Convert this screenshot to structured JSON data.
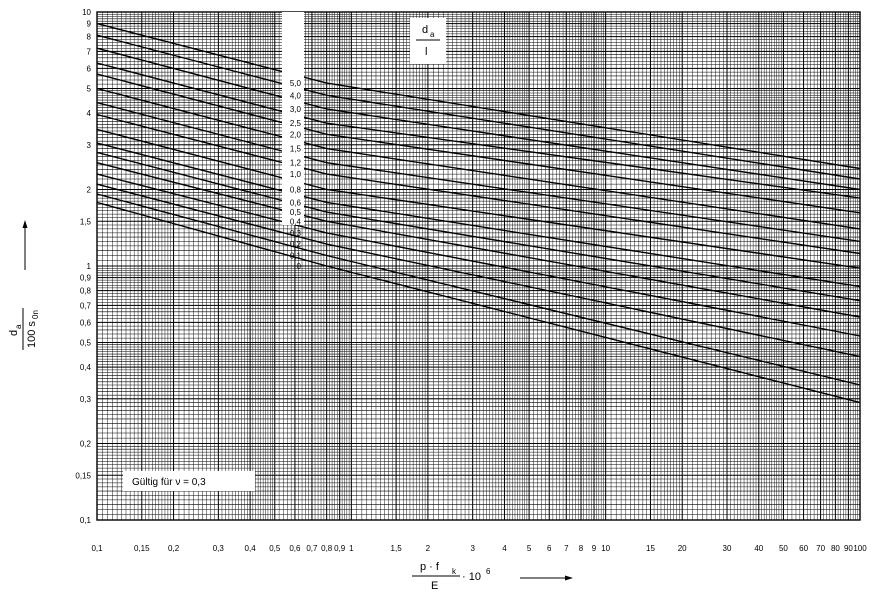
{
  "chart_data": {
    "type": "line",
    "x_scale": "log",
    "y_scale": "log",
    "xlim": [
      0.1,
      100
    ],
    "ylim": [
      0.1,
      10
    ],
    "grid": true,
    "x_ticks": [
      {
        "v": 0.1,
        "t": "0,1"
      },
      {
        "v": 0.15,
        "t": "0,15"
      },
      {
        "v": 0.2,
        "t": "0,2"
      },
      {
        "v": 0.3,
        "t": "0,3"
      },
      {
        "v": 0.4,
        "t": "0,4"
      },
      {
        "v": 0.5,
        "t": "0,5"
      },
      {
        "v": 0.6,
        "t": "0,6"
      },
      {
        "v": 0.7,
        "t": "0,7"
      },
      {
        "v": 0.8,
        "t": "0,8"
      },
      {
        "v": 0.9,
        "t": "0,9"
      },
      {
        "v": 1,
        "t": "1"
      },
      {
        "v": 1.5,
        "t": "1,5"
      },
      {
        "v": 2,
        "t": "2"
      },
      {
        "v": 3,
        "t": "3"
      },
      {
        "v": 4,
        "t": "4"
      },
      {
        "v": 5,
        "t": "5"
      },
      {
        "v": 6,
        "t": "6"
      },
      {
        "v": 7,
        "t": "7"
      },
      {
        "v": 8,
        "t": "8"
      },
      {
        "v": 9,
        "t": "9"
      },
      {
        "v": 10,
        "t": "10"
      },
      {
        "v": 15,
        "t": "15"
      },
      {
        "v": 20,
        "t": "20"
      },
      {
        "v": 30,
        "t": "30"
      },
      {
        "v": 40,
        "t": "40"
      },
      {
        "v": 50,
        "t": "50"
      },
      {
        "v": 60,
        "t": "60"
      },
      {
        "v": 70,
        "t": "70"
      },
      {
        "v": 80,
        "t": "80"
      },
      {
        "v": 90,
        "t": "90"
      },
      {
        "v": 100,
        "t": "100"
      }
    ],
    "y_ticks": [
      {
        "v": 10,
        "t": "10"
      },
      {
        "v": 9,
        "t": "9"
      },
      {
        "v": 8,
        "t": "8"
      },
      {
        "v": 7,
        "t": "7"
      },
      {
        "v": 6,
        "t": "6"
      },
      {
        "v": 5,
        "t": "5"
      },
      {
        "v": 4,
        "t": "4"
      },
      {
        "v": 3,
        "t": "3"
      },
      {
        "v": 2,
        "t": "2"
      },
      {
        "v": 1.5,
        "t": "1,5"
      },
      {
        "v": 1,
        "t": "1"
      },
      {
        "v": 0.9,
        "t": "0,9"
      },
      {
        "v": 0.8,
        "t": "0,8"
      },
      {
        "v": 0.7,
        "t": "0,7"
      },
      {
        "v": 0.6,
        "t": "0,6"
      },
      {
        "v": 0.5,
        "t": "0,5"
      },
      {
        "v": 0.4,
        "t": "0,4"
      },
      {
        "v": 0.3,
        "t": "0,3"
      },
      {
        "v": 0.2,
        "t": "0,2"
      },
      {
        "v": 0.15,
        "t": "0,15"
      },
      {
        "v": 0.1,
        "t": "0,1"
      }
    ],
    "xlabel": {
      "top": "p · f",
      "top_sub": "k",
      "bottom": "E",
      "factor": "· 10",
      "exp": "6"
    },
    "ylabel": {
      "top": "d",
      "top_sub": "a",
      "bottom": "100 s",
      "bottom_sub": "0n"
    },
    "curve_legend": {
      "top": "d",
      "top_sub": "a",
      "bottom": "l"
    },
    "annotation": "Gültig für  ν =  0,3",
    "series": [
      {
        "label": "5,0",
        "x": [
          0.1,
          0.8,
          100
        ],
        "y": [
          9.0,
          5.25,
          2.42
        ]
      },
      {
        "label": "4,0",
        "x": [
          0.1,
          0.8,
          100
        ],
        "y": [
          8.1,
          4.7,
          2.2
        ]
      },
      {
        "label": "3,0",
        "x": [
          0.1,
          0.8,
          100
        ],
        "y": [
          7.2,
          4.15,
          2.0
        ]
      },
      {
        "label": "2,5",
        "x": [
          0.1,
          0.8,
          100
        ],
        "y": [
          6.3,
          3.65,
          1.85
        ]
      },
      {
        "label": "2,0",
        "x": [
          0.1,
          0.8,
          100
        ],
        "y": [
          5.7,
          3.3,
          1.62
        ]
      },
      {
        "label": "1,5",
        "x": [
          0.1,
          0.8,
          100
        ],
        "y": [
          5.0,
          2.9,
          1.4
        ]
      },
      {
        "label": "1,2",
        "x": [
          0.1,
          0.8,
          100
        ],
        "y": [
          4.4,
          2.55,
          1.25
        ]
      },
      {
        "label": "1,0",
        "x": [
          0.1,
          0.8,
          100
        ],
        "y": [
          3.95,
          2.3,
          1.12
        ]
      },
      {
        "label": "0,8",
        "x": [
          0.1,
          0.8,
          100
        ],
        "y": [
          3.45,
          2.0,
          0.98
        ]
      },
      {
        "label": "0,6",
        "x": [
          0.1,
          0.8,
          100
        ],
        "y": [
          3.05,
          1.78,
          0.83
        ]
      },
      {
        "label": "0,5",
        "x": [
          0.1,
          0.8,
          100
        ],
        "y": [
          2.8,
          1.63,
          0.73
        ]
      },
      {
        "label": "0,4",
        "x": [
          0.1,
          0.8,
          100
        ],
        "y": [
          2.55,
          1.5,
          0.63
        ]
      },
      {
        "label": "0,3",
        "x": [
          0.1,
          0.8,
          100
        ],
        "y": [
          2.3,
          1.35,
          0.53
        ]
      },
      {
        "label": "0,2",
        "x": [
          0.1,
          0.8,
          100
        ],
        "y": [
          2.1,
          1.22,
          0.44
        ]
      },
      {
        "label": "0,1",
        "x": [
          0.1,
          0.8,
          100
        ],
        "y": [
          1.92,
          1.1,
          0.34
        ]
      },
      {
        "label": "0",
        "x": [
          0.1,
          0.8,
          100
        ],
        "y": [
          1.78,
          1.0,
          0.29
        ]
      }
    ]
  }
}
